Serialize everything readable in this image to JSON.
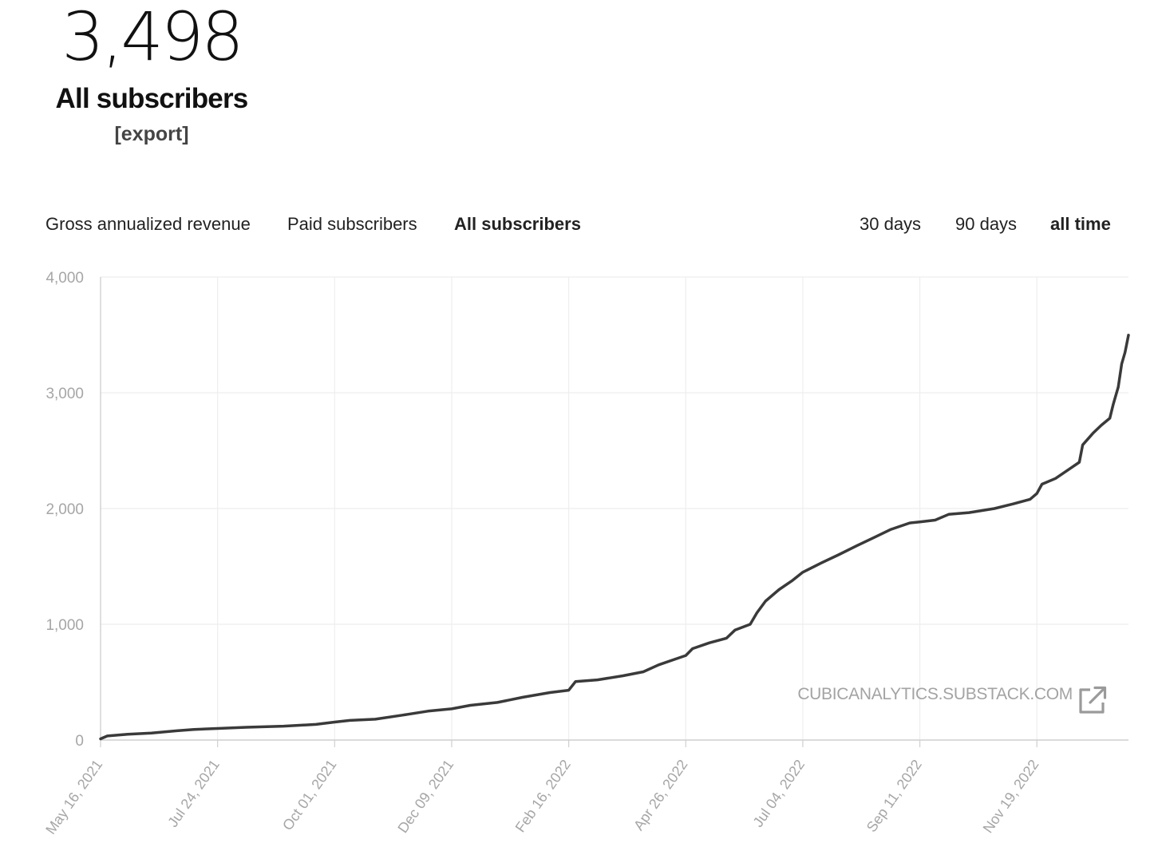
{
  "header": {
    "count": "3,498",
    "title": "All subscribers",
    "export_label": "[export]"
  },
  "metric_tabs": [
    {
      "label": "Gross annualized revenue",
      "active": false
    },
    {
      "label": "Paid subscribers",
      "active": false
    },
    {
      "label": "All subscribers",
      "active": true
    }
  ],
  "range_tabs": [
    {
      "label": "30 days",
      "active": false
    },
    {
      "label": "90 days",
      "active": false
    },
    {
      "label": "all time",
      "active": true
    }
  ],
  "watermark": "CUBICANALYTICS.SUBSTACK.COM",
  "icons": {
    "watermark": "external-link-icon"
  },
  "colors": {
    "line": "#3a3a3a",
    "grid": "#eeeeee",
    "tick_text": "#a6a6a6"
  },
  "chart_data": {
    "type": "line",
    "title": "",
    "xlabel": "",
    "ylabel": "",
    "ylim": [
      0,
      4000
    ],
    "xlim": [
      "2021-05-16",
      "2023-01-12"
    ],
    "grid": true,
    "y_ticks": [
      "0",
      "1,000",
      "2,000",
      "3,000",
      "4,000"
    ],
    "y_tick_values": [
      0,
      1000,
      2000,
      3000,
      4000
    ],
    "x_ticks": [
      {
        "label": "May 16, 2021",
        "date": "2021-05-16"
      },
      {
        "label": "Jul 24, 2021",
        "date": "2021-07-24"
      },
      {
        "label": "Oct 01, 2021",
        "date": "2021-10-01"
      },
      {
        "label": "Dec 09, 2021",
        "date": "2021-12-09"
      },
      {
        "label": "Feb 16, 2022",
        "date": "2022-02-16"
      },
      {
        "label": "Apr 26, 2022",
        "date": "2022-04-26"
      },
      {
        "label": "Jul 04, 2022",
        "date": "2022-07-04"
      },
      {
        "label": "Sep 11, 2022",
        "date": "2022-09-11"
      },
      {
        "label": "Nov 19, 2022",
        "date": "2022-11-19"
      }
    ],
    "series": [
      {
        "points": [
          [
            "2021-05-16",
            10
          ],
          [
            "2021-05-20",
            35
          ],
          [
            "2021-06-01",
            50
          ],
          [
            "2021-06-15",
            60
          ],
          [
            "2021-06-30",
            80
          ],
          [
            "2021-07-10",
            92
          ],
          [
            "2021-07-24",
            100
          ],
          [
            "2021-08-10",
            110
          ],
          [
            "2021-09-01",
            120
          ],
          [
            "2021-09-20",
            135
          ],
          [
            "2021-10-01",
            155
          ],
          [
            "2021-10-10",
            170
          ],
          [
            "2021-10-25",
            180
          ],
          [
            "2021-11-10",
            215
          ],
          [
            "2021-11-25",
            250
          ],
          [
            "2021-12-09",
            270
          ],
          [
            "2021-12-20",
            300
          ],
          [
            "2022-01-05",
            325
          ],
          [
            "2022-01-20",
            370
          ],
          [
            "2022-02-05",
            410
          ],
          [
            "2022-02-16",
            430
          ],
          [
            "2022-02-20",
            505
          ],
          [
            "2022-03-05",
            520
          ],
          [
            "2022-03-20",
            555
          ],
          [
            "2022-04-01",
            590
          ],
          [
            "2022-04-10",
            650
          ],
          [
            "2022-04-20",
            700
          ],
          [
            "2022-04-26",
            730
          ],
          [
            "2022-04-30",
            790
          ],
          [
            "2022-05-10",
            840
          ],
          [
            "2022-05-20",
            880
          ],
          [
            "2022-05-25",
            950
          ],
          [
            "2022-06-03",
            1000
          ],
          [
            "2022-06-07",
            1100
          ],
          [
            "2022-06-12",
            1200
          ],
          [
            "2022-06-20",
            1300
          ],
          [
            "2022-06-28",
            1380
          ],
          [
            "2022-07-04",
            1450
          ],
          [
            "2022-07-15",
            1530
          ],
          [
            "2022-07-25",
            1600
          ],
          [
            "2022-08-05",
            1680
          ],
          [
            "2022-08-15",
            1750
          ],
          [
            "2022-08-25",
            1820
          ],
          [
            "2022-09-05",
            1875
          ],
          [
            "2022-09-11",
            1885
          ],
          [
            "2022-09-20",
            1900
          ],
          [
            "2022-09-28",
            1950
          ],
          [
            "2022-10-10",
            1965
          ],
          [
            "2022-10-25",
            2000
          ],
          [
            "2022-11-05",
            2040
          ],
          [
            "2022-11-15",
            2080
          ],
          [
            "2022-11-19",
            2130
          ],
          [
            "2022-11-22",
            2210
          ],
          [
            "2022-11-30",
            2260
          ],
          [
            "2022-12-10",
            2360
          ],
          [
            "2022-12-14",
            2400
          ],
          [
            "2022-12-16",
            2550
          ],
          [
            "2022-12-22",
            2650
          ],
          [
            "2022-12-27",
            2720
          ],
          [
            "2023-01-01",
            2780
          ],
          [
            "2023-01-03",
            2900
          ],
          [
            "2023-01-06",
            3050
          ],
          [
            "2023-01-08",
            3250
          ],
          [
            "2023-01-10",
            3350
          ],
          [
            "2023-01-12",
            3498
          ]
        ]
      }
    ]
  }
}
